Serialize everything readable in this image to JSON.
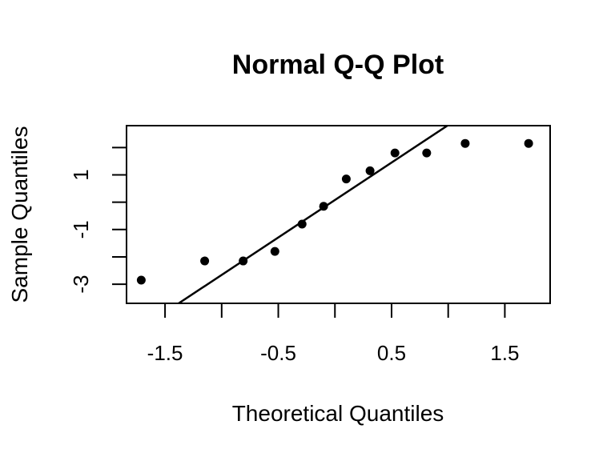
{
  "chart_data": {
    "type": "scatter",
    "title": "Normal Q-Q Plot",
    "xlabel": "Theoretical Quantiles",
    "ylabel": "Sample Quantiles",
    "xlim": [
      -1.84,
      1.9
    ],
    "ylim": [
      -3.7,
      2.8
    ],
    "x_ticks": [
      -1.5,
      -1,
      -0.5,
      0,
      0.5,
      1,
      1.5
    ],
    "x_tick_labels": [
      "-1.5",
      "",
      "-0.5",
      "",
      "0.5",
      "",
      "1.5"
    ],
    "y_ticks": [
      -3,
      -2,
      -1,
      0,
      1,
      2
    ],
    "y_tick_labels": [
      "-3",
      "",
      "-1",
      "",
      "1",
      ""
    ],
    "points": {
      "x": [
        -1.71,
        -1.15,
        -0.81,
        -0.53,
        -0.29,
        -0.1,
        0.1,
        0.31,
        0.53,
        0.81,
        1.15,
        1.71
      ],
      "y": [
        -2.85,
        -2.15,
        -2.15,
        -1.8,
        -0.8,
        -0.15,
        0.85,
        1.15,
        1.8,
        1.8,
        2.15,
        2.15
      ]
    },
    "qq_line": {
      "intercept": 0.08,
      "slope": 2.74
    },
    "point_color": "#000000",
    "line_color": "#000000",
    "grid": false,
    "legend": "none"
  }
}
